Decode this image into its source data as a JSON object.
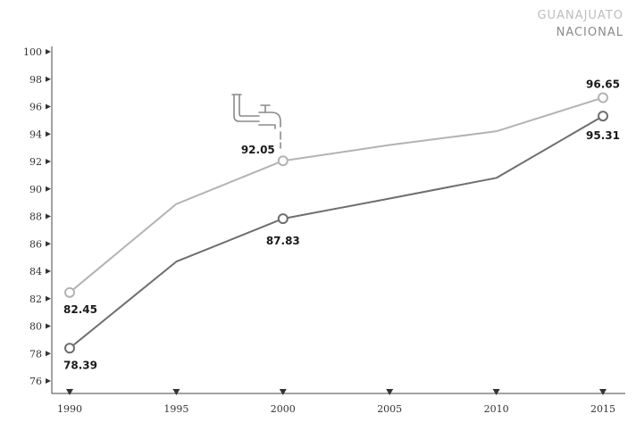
{
  "chart_data": {
    "type": "line",
    "title": "",
    "xlabel": "",
    "ylabel": "",
    "x": [
      1990,
      1995,
      2000,
      2005,
      2010,
      2015
    ],
    "ylim": [
      76,
      100
    ],
    "yticks": [
      76,
      78,
      80,
      82,
      84,
      86,
      88,
      90,
      92,
      94,
      96,
      98,
      100
    ],
    "grid": false,
    "legend_position": "top-right",
    "series": [
      {
        "name": "GUANAJUATO",
        "color": "#b3b3b3",
        "values": [
          82.45,
          88.9,
          92.05,
          93.2,
          94.2,
          96.65
        ],
        "labels": [
          "82.45",
          "",
          "92.05",
          "",
          "",
          "96.65"
        ]
      },
      {
        "name": "NACIONAL",
        "color": "#6e6e6e",
        "values": [
          78.39,
          84.7,
          87.83,
          89.3,
          90.8,
          95.31
        ],
        "labels": [
          "78.39",
          "",
          "87.83",
          "",
          "",
          "95.31"
        ]
      }
    ],
    "annotation_icon": "water-faucet-icon"
  }
}
